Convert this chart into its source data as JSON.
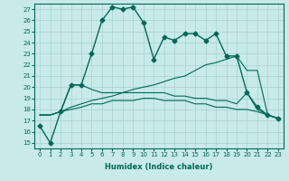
{
  "xlabel": "Humidex (Indice chaleur)",
  "bg_color": "#c8eae8",
  "grid_color": "#a8d4d0",
  "line_color": "#006858",
  "xlim": [
    -0.5,
    23.5
  ],
  "ylim": [
    14.5,
    27.5
  ],
  "yticks": [
    15,
    16,
    17,
    18,
    19,
    20,
    21,
    22,
    23,
    24,
    25,
    26,
    27
  ],
  "xticks": [
    0,
    1,
    2,
    3,
    4,
    5,
    6,
    7,
    8,
    9,
    10,
    11,
    12,
    13,
    14,
    15,
    16,
    17,
    18,
    19,
    20,
    21,
    22,
    23
  ],
  "series": [
    {
      "x": [
        0,
        1,
        2,
        3,
        4,
        5,
        6,
        7,
        8,
        9,
        10,
        11,
        12,
        13,
        14,
        15,
        16,
        17,
        18,
        19,
        20,
        21,
        22,
        23
      ],
      "y": [
        16.5,
        15.0,
        17.8,
        20.2,
        20.2,
        23.0,
        26.0,
        27.2,
        27.0,
        27.2,
        25.8,
        22.5,
        24.5,
        24.2,
        24.8,
        24.8,
        24.2,
        24.8,
        22.8,
        22.8,
        19.5,
        18.2,
        17.5,
        17.2
      ],
      "marker": "D",
      "markersize": 2.5,
      "linewidth": 1.0
    },
    {
      "x": [
        0,
        1,
        2,
        3,
        4,
        5,
        6,
        7,
        8,
        9,
        10,
        11,
        12,
        13,
        14,
        15,
        16,
        17,
        18,
        19,
        20,
        21,
        22,
        23
      ],
      "y": [
        17.5,
        17.5,
        17.8,
        20.2,
        20.2,
        19.8,
        19.5,
        19.5,
        19.5,
        19.8,
        20.0,
        20.2,
        20.5,
        20.8,
        21.0,
        21.5,
        22.0,
        22.2,
        22.5,
        22.8,
        21.5,
        21.5,
        17.5,
        17.2
      ],
      "marker": null,
      "linewidth": 0.8
    },
    {
      "x": [
        0,
        1,
        2,
        3,
        4,
        5,
        6,
        7,
        8,
        9,
        10,
        11,
        12,
        13,
        14,
        15,
        16,
        17,
        18,
        19,
        20,
        21,
        22,
        23
      ],
      "y": [
        17.5,
        17.5,
        17.8,
        18.2,
        18.5,
        18.8,
        19.0,
        19.2,
        19.5,
        19.5,
        19.5,
        19.5,
        19.5,
        19.2,
        19.2,
        19.0,
        19.0,
        18.8,
        18.8,
        18.5,
        19.5,
        18.0,
        17.5,
        17.2
      ],
      "marker": null,
      "linewidth": 0.8
    },
    {
      "x": [
        0,
        1,
        2,
        3,
        4,
        5,
        6,
        7,
        8,
        9,
        10,
        11,
        12,
        13,
        14,
        15,
        16,
        17,
        18,
        19,
        20,
        21,
        22,
        23
      ],
      "y": [
        17.5,
        17.5,
        17.8,
        18.0,
        18.2,
        18.5,
        18.5,
        18.8,
        18.8,
        18.8,
        19.0,
        19.0,
        18.8,
        18.8,
        18.8,
        18.5,
        18.5,
        18.2,
        18.2,
        18.0,
        18.0,
        17.8,
        17.5,
        17.2
      ],
      "marker": null,
      "linewidth": 0.8
    }
  ]
}
